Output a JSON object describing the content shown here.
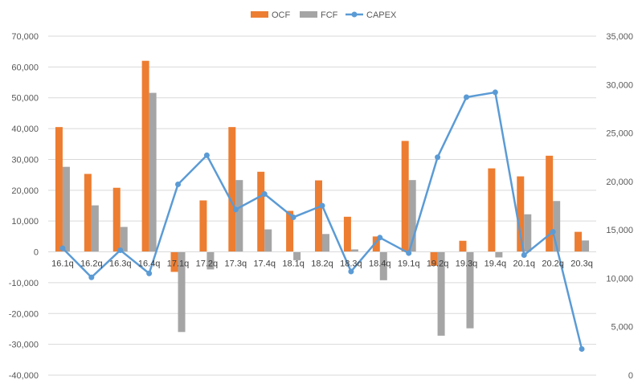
{
  "chart_data": {
    "type": "bar",
    "categories": [
      "16.1q",
      "16.2q",
      "16.3q",
      "16.4q",
      "17.1q",
      "17.2q",
      "17.3q",
      "17.4q",
      "18.1q",
      "18.2q",
      "18.3q",
      "18.4q",
      "19.1q",
      "19.2q",
      "19.3q",
      "19.4q",
      "20.1q",
      "20.2q",
      "20.3q"
    ],
    "series": [
      {
        "name": "OCF",
        "type": "bar",
        "axis": "left",
        "color": "#ED7D31",
        "values": [
          40500,
          25300,
          20800,
          62000,
          -6500,
          16700,
          40500,
          26000,
          13300,
          23200,
          11400,
          5000,
          36000,
          -4500,
          3600,
          27100,
          24500,
          31200,
          6500
        ]
      },
      {
        "name": "FCF",
        "type": "bar",
        "axis": "left",
        "color": "#A5A5A5",
        "values": [
          27600,
          15100,
          8100,
          51600,
          -26000,
          -5700,
          23300,
          7300,
          -2700,
          5800,
          800,
          -9200,
          23300,
          -27200,
          -24800,
          -1800,
          12200,
          16500,
          3700
        ]
      },
      {
        "name": "CAPEX",
        "type": "line",
        "axis": "right",
        "color": "#5B9BD5",
        "values": [
          13100,
          10100,
          12900,
          10500,
          19700,
          22700,
          17100,
          18700,
          16300,
          17500,
          10700,
          14200,
          12600,
          22500,
          28700,
          29200,
          12400,
          14800,
          2700
        ]
      }
    ],
    "left_axis": {
      "ticks": [
        "70,000",
        "60,000",
        "50,000",
        "40,000",
        "30,000",
        "20,000",
        "10,000",
        "0",
        "-10,000",
        "-20,000",
        "-30,000",
        "-40,000"
      ],
      "ylim": [
        -40000,
        70000
      ],
      "negative_tick_color": "#FF0000"
    },
    "right_axis": {
      "ticks": [
        "35,000",
        "30,000",
        "25,000",
        "20,000",
        "15,000",
        "10,000",
        "5,000",
        "0"
      ],
      "ylim": [
        0,
        35000
      ]
    },
    "title": "",
    "xlabel": "",
    "ylabel": "",
    "grid": true,
    "legend_position": "top-center"
  }
}
